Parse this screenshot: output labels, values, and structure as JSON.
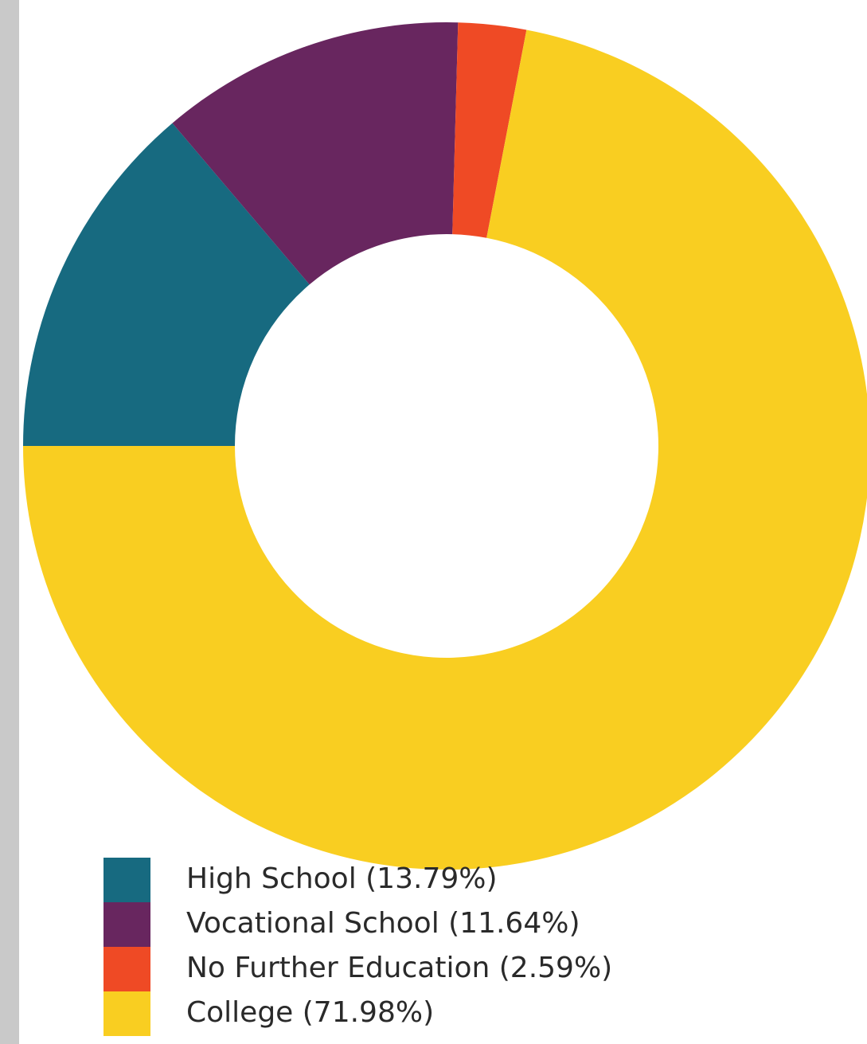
{
  "chart_data": {
    "type": "pie",
    "variant": "donut",
    "slices": [
      {
        "label": "High School",
        "value": 13.79,
        "legend": "High School (13.79%)",
        "color": "#176a80"
      },
      {
        "label": "Vocational School",
        "value": 11.64,
        "legend": "Vocational School (11.64%)",
        "color": "#68265f"
      },
      {
        "label": "No Further Education",
        "value": 2.59,
        "legend": "No Further Education (2.59%)",
        "color": "#ef4a25"
      },
      {
        "label": "College",
        "value": 71.98,
        "legend": "College (71.98%)",
        "color": "#f9ce21"
      }
    ],
    "legend_placement": "bottom-left"
  }
}
